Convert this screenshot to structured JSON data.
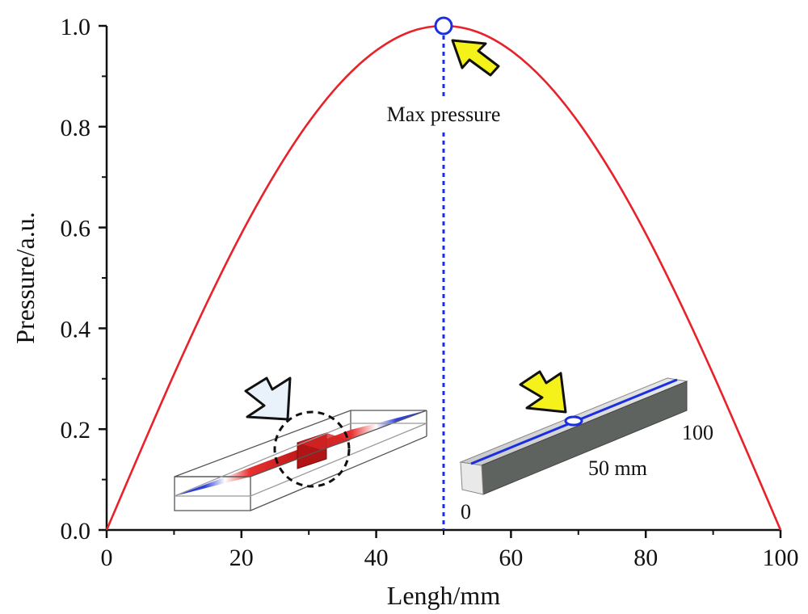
{
  "chart_data": {
    "type": "line",
    "xlabel": "Lengh/mm",
    "ylabel": "Pressure/a.u.",
    "xlim": [
      0,
      100
    ],
    "ylim": [
      0,
      1.0
    ],
    "xticks": [
      "0",
      "20",
      "40",
      "60",
      "80",
      "100"
    ],
    "yticks": [
      "0.0",
      "0.2",
      "0.4",
      "0.6",
      "0.8",
      "1.0"
    ],
    "grid": false,
    "series": [
      {
        "color": "#e8212a",
        "x": [
          0,
          5,
          10,
          15,
          20,
          25,
          30,
          35,
          40,
          45,
          50,
          55,
          60,
          65,
          70,
          75,
          80,
          85,
          90,
          95,
          100
        ],
        "y": [
          0.0,
          0.156,
          0.309,
          0.454,
          0.588,
          0.707,
          0.809,
          0.891,
          0.951,
          0.988,
          1.0,
          0.988,
          0.951,
          0.891,
          0.809,
          0.707,
          0.588,
          0.454,
          0.309,
          0.156,
          0.0
        ]
      }
    ],
    "annotations": {
      "max_label": "Max pressure",
      "max_point": {
        "x": 50,
        "y": 1.0
      },
      "inset_label_mid": "50 mm",
      "inset_label_end": "100",
      "inset_label_start": "0"
    },
    "colors": {
      "curve": "#e8212a",
      "marker": "#1a2fe0",
      "arrow_fill": "#f4f21a",
      "axis": "#111111"
    }
  }
}
